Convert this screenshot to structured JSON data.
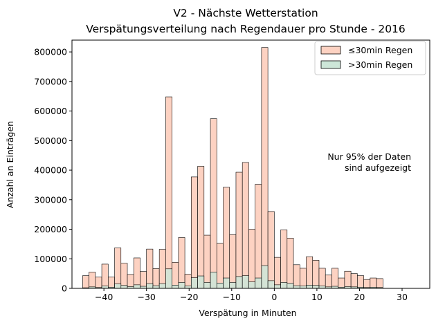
{
  "chart_data": {
    "type": "bar",
    "title": "V2 - Nächste Wetterstation",
    "subtitle": "Verspätungsverteilung nach Regendauer pro Stunde - 2016",
    "xlabel": "Verspätung in Minuten",
    "ylabel": "Anzahl an Einträgen",
    "annotation_line1": "Nur 95% der Daten",
    "annotation_line2": "sind aufgezeigt",
    "xlim": [
      -47.5,
      36.5
    ],
    "ylim": [
      0,
      840000
    ],
    "xticks": [
      -40,
      -30,
      -20,
      -10,
      0,
      10,
      20,
      30
    ],
    "xtick_labels": [
      "−40",
      "−30",
      "−20",
      "−10",
      "0",
      "10",
      "20",
      "30"
    ],
    "yticks": [
      0,
      100000,
      200000,
      300000,
      400000,
      500000,
      600000,
      700000,
      800000
    ],
    "ytick_labels": [
      "0",
      "100000",
      "200000",
      "300000",
      "400000",
      "500000",
      "600000",
      "700000",
      "800000"
    ],
    "legend_position": "top-right",
    "grid": false,
    "bin_width": 1.5,
    "bin_start": -45,
    "series": [
      {
        "name": "≤30min Regen",
        "color": "#fdd2c2",
        "values": [
          43000,
          55000,
          38000,
          82000,
          38000,
          137000,
          85000,
          47000,
          103000,
          57000,
          133000,
          67000,
          132000,
          648000,
          88000,
          172000,
          48000,
          377000,
          413000,
          180000,
          574000,
          152000,
          342000,
          182000,
          393000,
          426000,
          200000,
          352000,
          815000,
          260000,
          105000,
          198000,
          170000,
          80000,
          68000,
          107000,
          95000,
          68000,
          45000,
          68000,
          35000,
          58000,
          50000,
          43000,
          30000,
          35000,
          33000
        ]
      },
      {
        "name": ">30min Regen",
        "color": "#cde6d8",
        "values": [
          2000,
          5000,
          3000,
          8000,
          4000,
          15000,
          10000,
          6000,
          12000,
          7000,
          16000,
          9000,
          16000,
          66000,
          11000,
          20000,
          8000,
          36000,
          42000,
          20000,
          55000,
          18000,
          35000,
          20000,
          40000,
          43000,
          22000,
          35000,
          77000,
          26000,
          12000,
          20000,
          17000,
          9000,
          8000,
          11000,
          10000,
          8000,
          5000,
          7000,
          4000,
          6000,
          5000,
          4000,
          3000,
          4000,
          3000
        ]
      }
    ]
  }
}
